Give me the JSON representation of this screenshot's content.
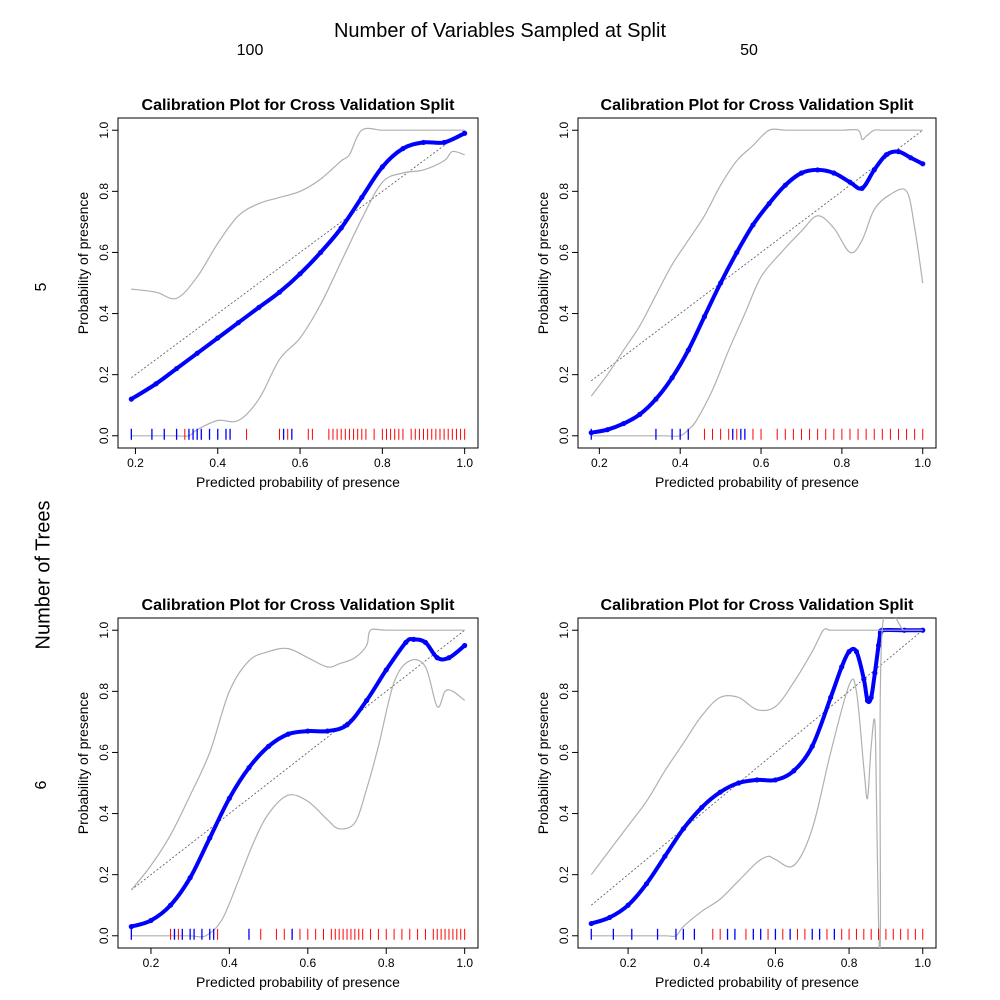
{
  "figure": {
    "title": "Number of Variables Sampled at Split",
    "column_labels": [
      "100",
      "50"
    ],
    "row_title": "Number of Trees",
    "row_labels": [
      "5",
      "6"
    ]
  },
  "colors": {
    "calibration_curve": "#0000ff",
    "confidence_band": "#b0b0b0",
    "reference_line": "#555555",
    "presence_rug": "#ff0000",
    "absence_rug": "#0000ff"
  },
  "chart_data": [
    {
      "type": "line",
      "title": "Calibration Plot for Cross Validation Split",
      "xlabel": "Predicted probability of presence",
      "ylabel": "Probability of presence",
      "xlim": [
        0.19,
        1.0
      ],
      "ylim": [
        0,
        1
      ],
      "x_ticks": [
        "0.2",
        "0.4",
        "0.6",
        "0.8",
        "1.0"
      ],
      "y_ticks": [
        "0.0",
        "0.2",
        "0.4",
        "0.6",
        "0.8",
        "1.0"
      ],
      "grid": false,
      "reference_line": [
        [
          0.19,
          0.19
        ],
        [
          1.0,
          1.0
        ]
      ],
      "series": [
        {
          "role": "calibration",
          "style": "circles",
          "x": [
            0.19,
            0.25,
            0.3,
            0.35,
            0.4,
            0.45,
            0.5,
            0.55,
            0.6,
            0.65,
            0.7,
            0.75,
            0.8,
            0.85,
            0.9,
            0.95,
            1.0
          ],
          "y": [
            0.12,
            0.17,
            0.22,
            0.27,
            0.32,
            0.37,
            0.42,
            0.47,
            0.53,
            0.6,
            0.68,
            0.78,
            0.88,
            0.94,
            0.96,
            0.96,
            0.99
          ]
        },
        {
          "role": "upper_band",
          "x": [
            0.19,
            0.25,
            0.3,
            0.35,
            0.4,
            0.45,
            0.5,
            0.55,
            0.6,
            0.65,
            0.7,
            0.72,
            0.75,
            0.8,
            0.85,
            0.9,
            0.95,
            1.0
          ],
          "y": [
            0.48,
            0.47,
            0.45,
            0.52,
            0.63,
            0.72,
            0.76,
            0.78,
            0.8,
            0.84,
            0.9,
            0.92,
            1.0,
            1.0,
            1.0,
            1.0,
            1.0,
            1.0
          ]
        },
        {
          "role": "lower_band",
          "x": [
            0.19,
            0.25,
            0.3,
            0.33,
            0.35,
            0.4,
            0.45,
            0.5,
            0.55,
            0.6,
            0.65,
            0.7,
            0.75,
            0.8,
            0.85,
            0.9,
            0.95,
            0.97,
            1.0
          ],
          "y": [
            0,
            0,
            0,
            0,
            0.02,
            0.05,
            0.05,
            0.12,
            0.25,
            0.32,
            0.43,
            0.57,
            0.71,
            0.83,
            0.86,
            0.87,
            0.9,
            0.93,
            0.92
          ]
        }
      ],
      "rug_absence": [
        0.19,
        0.24,
        0.27,
        0.3,
        0.33,
        0.34,
        0.35,
        0.36,
        0.38,
        0.4,
        0.42,
        0.43,
        0.56,
        0.58
      ],
      "rug_presence": [
        0.32,
        0.47,
        0.55,
        0.57,
        0.62,
        0.63,
        0.67,
        0.68,
        0.69,
        0.7,
        0.71,
        0.72,
        0.73,
        0.74,
        0.75,
        0.76,
        0.78,
        0.8,
        0.81,
        0.82,
        0.83,
        0.84,
        0.85,
        0.87,
        0.88,
        0.89,
        0.9,
        0.91,
        0.92,
        0.93,
        0.94,
        0.95,
        0.96,
        0.97,
        0.98,
        0.99,
        1.0
      ]
    },
    {
      "type": "line",
      "title": "Calibration Plot for Cross Validation Split",
      "xlabel": "Predicted probability of presence",
      "ylabel": "Probability of presence",
      "xlim": [
        0.18,
        1.0
      ],
      "ylim": [
        0,
        1
      ],
      "x_ticks": [
        "0.2",
        "0.4",
        "0.6",
        "0.8",
        "1.0"
      ],
      "y_ticks": [
        "0.0",
        "0.2",
        "0.4",
        "0.6",
        "0.8",
        "1.0"
      ],
      "grid": false,
      "reference_line": [
        [
          0.18,
          0.18
        ],
        [
          1.0,
          1.0
        ]
      ],
      "series": [
        {
          "role": "calibration",
          "style": "circles",
          "x": [
            0.18,
            0.22,
            0.26,
            0.3,
            0.34,
            0.38,
            0.42,
            0.46,
            0.5,
            0.54,
            0.58,
            0.62,
            0.66,
            0.7,
            0.74,
            0.78,
            0.82,
            0.85,
            0.88,
            0.91,
            0.94,
            0.97,
            1.0
          ],
          "y": [
            0.01,
            0.02,
            0.04,
            0.07,
            0.12,
            0.19,
            0.28,
            0.39,
            0.5,
            0.6,
            0.69,
            0.76,
            0.82,
            0.86,
            0.87,
            0.86,
            0.83,
            0.81,
            0.87,
            0.92,
            0.93,
            0.91,
            0.89
          ]
        },
        {
          "role": "upper_band",
          "x": [
            0.18,
            0.22,
            0.26,
            0.3,
            0.34,
            0.38,
            0.42,
            0.46,
            0.5,
            0.54,
            0.58,
            0.62,
            0.66,
            0.7,
            0.75,
            0.8,
            0.84,
            0.85,
            0.86,
            0.88,
            0.9,
            0.95,
            1.0
          ],
          "y": [
            0.13,
            0.2,
            0.28,
            0.36,
            0.46,
            0.56,
            0.64,
            0.72,
            0.82,
            0.9,
            0.95,
            1.0,
            1.0,
            1.0,
            1.0,
            1.0,
            1.0,
            0.97,
            0.98,
            1.0,
            1.0,
            1.0,
            1.0
          ]
        },
        {
          "role": "lower_band",
          "x": [
            0.18,
            0.3,
            0.36,
            0.4,
            0.42,
            0.44,
            0.48,
            0.52,
            0.56,
            0.6,
            0.65,
            0.7,
            0.74,
            0.78,
            0.82,
            0.85,
            0.88,
            0.92,
            0.96,
            0.98,
            1.0
          ],
          "y": [
            0,
            0,
            0,
            0,
            0.02,
            0.05,
            0.15,
            0.28,
            0.4,
            0.52,
            0.6,
            0.67,
            0.72,
            0.68,
            0.6,
            0.64,
            0.74,
            0.79,
            0.8,
            0.68,
            0.5
          ]
        }
      ],
      "rug_absence": [
        0.18,
        0.34,
        0.38,
        0.4,
        0.42,
        0.53,
        0.55,
        0.56
      ],
      "rug_presence": [
        0.46,
        0.48,
        0.5,
        0.52,
        0.54,
        0.58,
        0.6,
        0.64,
        0.66,
        0.68,
        0.7,
        0.72,
        0.74,
        0.76,
        0.78,
        0.8,
        0.82,
        0.84,
        0.86,
        0.88,
        0.9,
        0.92,
        0.94,
        0.96,
        0.98,
        1.0
      ]
    },
    {
      "type": "line",
      "title": "Calibration Plot for Cross Validation Split",
      "xlabel": "Predicted probability of presence",
      "ylabel": "Probability of presence",
      "xlim": [
        0.15,
        1.0
      ],
      "ylim": [
        0,
        1
      ],
      "x_ticks": [
        "0.2",
        "0.4",
        "0.6",
        "0.8",
        "1.0"
      ],
      "y_ticks": [
        "0.0",
        "0.2",
        "0.4",
        "0.6",
        "0.8",
        "1.0"
      ],
      "grid": false,
      "reference_line": [
        [
          0.15,
          0.15
        ],
        [
          1.0,
          1.0
        ]
      ],
      "series": [
        {
          "role": "calibration",
          "style": "circles",
          "x": [
            0.15,
            0.2,
            0.25,
            0.3,
            0.35,
            0.4,
            0.45,
            0.5,
            0.55,
            0.6,
            0.65,
            0.7,
            0.75,
            0.8,
            0.85,
            0.87,
            0.9,
            0.93,
            0.96,
            1.0
          ],
          "y": [
            0.03,
            0.05,
            0.1,
            0.19,
            0.32,
            0.45,
            0.55,
            0.62,
            0.66,
            0.67,
            0.67,
            0.69,
            0.77,
            0.87,
            0.96,
            0.97,
            0.96,
            0.91,
            0.91,
            0.95
          ]
        },
        {
          "role": "upper_band",
          "x": [
            0.15,
            0.2,
            0.25,
            0.3,
            0.35,
            0.4,
            0.45,
            0.5,
            0.55,
            0.6,
            0.65,
            0.68,
            0.72,
            0.75,
            0.76,
            0.8,
            0.9,
            1.0
          ],
          "y": [
            0.15,
            0.23,
            0.33,
            0.46,
            0.6,
            0.8,
            0.9,
            0.93,
            0.94,
            0.91,
            0.88,
            0.89,
            0.91,
            0.95,
            1.0,
            1.0,
            1.0,
            1.0
          ]
        },
        {
          "role": "lower_band",
          "x": [
            0.15,
            0.2,
            0.25,
            0.3,
            0.34,
            0.38,
            0.42,
            0.46,
            0.5,
            0.55,
            0.6,
            0.65,
            0.68,
            0.72,
            0.75,
            0.78,
            0.82,
            0.86,
            0.9,
            0.93,
            0.95,
            0.97,
            1.0
          ],
          "y": [
            0,
            0,
            0,
            0,
            0,
            0.05,
            0.17,
            0.3,
            0.4,
            0.46,
            0.44,
            0.38,
            0.35,
            0.37,
            0.48,
            0.62,
            0.83,
            0.9,
            0.88,
            0.75,
            0.8,
            0.8,
            0.77
          ]
        }
      ],
      "rug_absence": [
        0.15,
        0.26,
        0.28,
        0.3,
        0.31,
        0.33,
        0.35,
        0.36,
        0.45,
        0.56
      ],
      "rug_presence": [
        0.25,
        0.27,
        0.37,
        0.48,
        0.52,
        0.54,
        0.56,
        0.58,
        0.6,
        0.62,
        0.64,
        0.66,
        0.67,
        0.68,
        0.69,
        0.7,
        0.71,
        0.72,
        0.73,
        0.74,
        0.76,
        0.78,
        0.8,
        0.82,
        0.84,
        0.86,
        0.88,
        0.9,
        0.92,
        0.93,
        0.94,
        0.95,
        0.96,
        0.97,
        0.98,
        0.99,
        1.0
      ]
    },
    {
      "type": "line",
      "title": "Calibration Plot for Cross Validation Split",
      "xlabel": "Predicted probability of presence",
      "ylabel": "Probability of presence",
      "xlim": [
        0.1,
        1.0
      ],
      "ylim": [
        0,
        1
      ],
      "x_ticks": [
        "0.2",
        "0.4",
        "0.6",
        "0.8",
        "1.0"
      ],
      "y_ticks": [
        "0.0",
        "0.2",
        "0.4",
        "0.6",
        "0.8",
        "1.0"
      ],
      "grid": false,
      "reference_line": [
        [
          0.1,
          0.1
        ],
        [
          1.0,
          1.0
        ]
      ],
      "series": [
        {
          "role": "calibration",
          "style": "circles",
          "x": [
            0.1,
            0.15,
            0.2,
            0.25,
            0.3,
            0.35,
            0.4,
            0.45,
            0.5,
            0.55,
            0.6,
            0.65,
            0.7,
            0.75,
            0.78,
            0.8,
            0.82,
            0.84,
            0.85,
            0.86,
            0.87,
            0.88,
            0.885,
            0.89,
            0.95,
            1.0
          ],
          "y": [
            0.04,
            0.06,
            0.1,
            0.17,
            0.26,
            0.35,
            0.42,
            0.47,
            0.5,
            0.51,
            0.51,
            0.54,
            0.62,
            0.78,
            0.88,
            0.93,
            0.93,
            0.84,
            0.77,
            0.78,
            0.86,
            0.95,
            0.99,
            1.0,
            1.0,
            1.0
          ]
        },
        {
          "role": "upper_band",
          "x": [
            0.1,
            0.15,
            0.2,
            0.25,
            0.3,
            0.35,
            0.4,
            0.45,
            0.5,
            0.55,
            0.6,
            0.65,
            0.7,
            0.73,
            0.75,
            0.8,
            0.85,
            0.9,
            1.0
          ],
          "y": [
            0.2,
            0.28,
            0.36,
            0.44,
            0.54,
            0.63,
            0.72,
            0.78,
            0.78,
            0.74,
            0.75,
            0.83,
            0.93,
            1.0,
            1.0,
            1.0,
            1.0,
            1.0,
            1.0
          ]
        },
        {
          "role": "lower_band",
          "x": [
            0.1,
            0.2,
            0.3,
            0.33,
            0.35,
            0.4,
            0.45,
            0.5,
            0.55,
            0.58,
            0.6,
            0.65,
            0.7,
            0.75,
            0.8,
            0.82,
            0.84,
            0.85,
            0.86,
            0.87,
            0.875,
            0.88,
            0.885,
            0.89,
            0.95,
            1.0
          ],
          "y": [
            0,
            0,
            0,
            0,
            0.03,
            0.08,
            0.12,
            0.18,
            0.24,
            0.26,
            0.25,
            0.23,
            0.35,
            0.6,
            0.82,
            0.8,
            0.55,
            0.45,
            0.62,
            0.7,
            0.4,
            0.05,
            0,
            1.0,
            1.0,
            1.0
          ]
        }
      ],
      "rug_absence": [
        0.1,
        0.16,
        0.21,
        0.28,
        0.33,
        0.35,
        0.38,
        0.47,
        0.49,
        0.54,
        0.56,
        0.6,
        0.64,
        0.7,
        0.72,
        0.76
      ],
      "rug_presence": [
        0.43,
        0.45,
        0.52,
        0.58,
        0.62,
        0.66,
        0.68,
        0.74,
        0.78,
        0.8,
        0.82,
        0.84,
        0.86,
        0.88,
        0.9,
        0.92,
        0.94,
        0.96,
        0.98,
        1.0
      ]
    }
  ]
}
